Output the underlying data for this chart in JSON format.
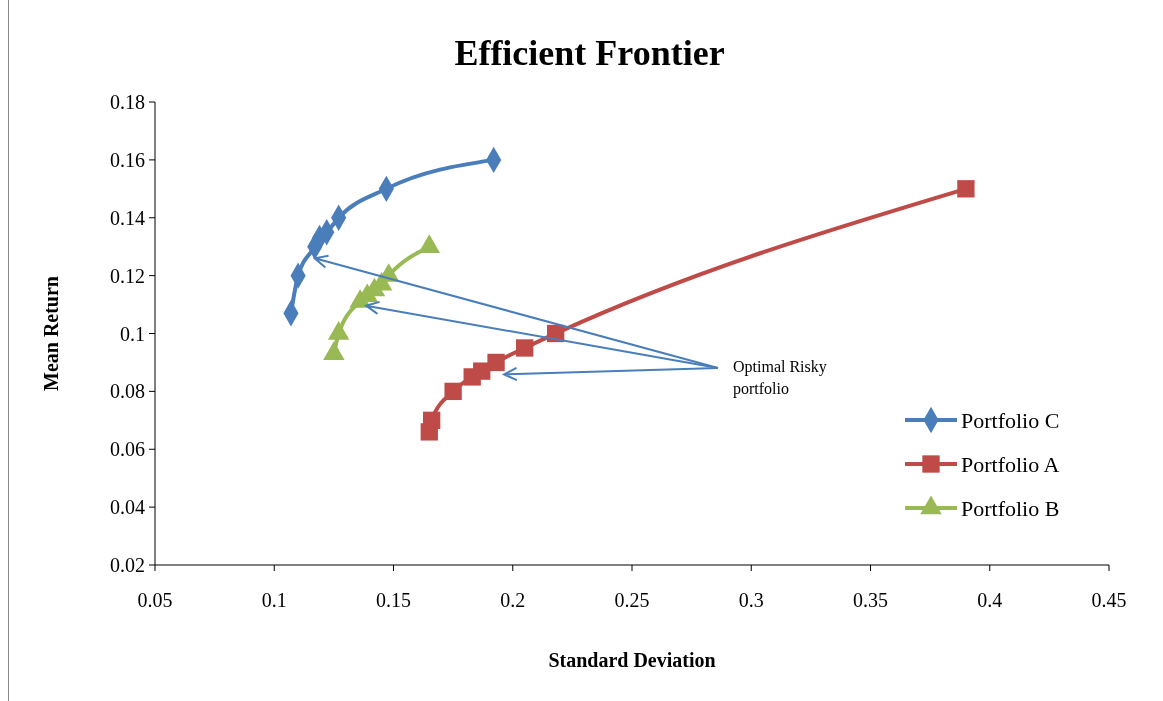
{
  "chart_data": {
    "type": "line",
    "title": "Efficient Frontier",
    "xlabel": "Standard Deviation",
    "ylabel": "Mean Return",
    "xlim": [
      0.05,
      0.45
    ],
    "xticks": [
      0.05,
      0.1,
      0.15,
      0.2,
      0.25,
      0.3,
      0.35,
      0.4,
      0.45
    ],
    "ylim": [
      0.02,
      0.18
    ],
    "yticks": [
      0.02,
      0.04,
      0.06,
      0.08,
      0.1,
      0.12,
      0.14,
      0.16,
      0.18
    ],
    "grid": false,
    "legend": "right",
    "annotations": [
      {
        "text": "Optimal Risky portfolio",
        "x": 0.117,
        "y": 0.126
      }
    ],
    "series": [
      {
        "name": "Portfolio C",
        "color": "#4a7ebb",
        "marker": "diamond",
        "x": [
          0.107,
          0.11,
          0.117,
          0.119,
          0.122,
          0.127,
          0.147,
          0.192
        ],
        "values": [
          0.107,
          0.12,
          0.13,
          0.133,
          0.135,
          0.14,
          0.15,
          0.16
        ]
      },
      {
        "name": "Portfolio A",
        "color": "#be4b48",
        "marker": "square",
        "x": [
          0.165,
          0.166,
          0.175,
          0.183,
          0.187,
          0.193,
          0.205,
          0.218,
          0.39
        ],
        "values": [
          0.066,
          0.07,
          0.08,
          0.085,
          0.087,
          0.09,
          0.095,
          0.1,
          0.15
        ]
      },
      {
        "name": "Portfolio B",
        "color": "#98b954",
        "marker": "triangle",
        "x": [
          0.125,
          0.127,
          0.136,
          0.139,
          0.142,
          0.145,
          0.148,
          0.165
        ],
        "values": [
          0.093,
          0.1,
          0.111,
          0.113,
          0.115,
          0.117,
          0.12,
          0.13
        ]
      }
    ]
  }
}
